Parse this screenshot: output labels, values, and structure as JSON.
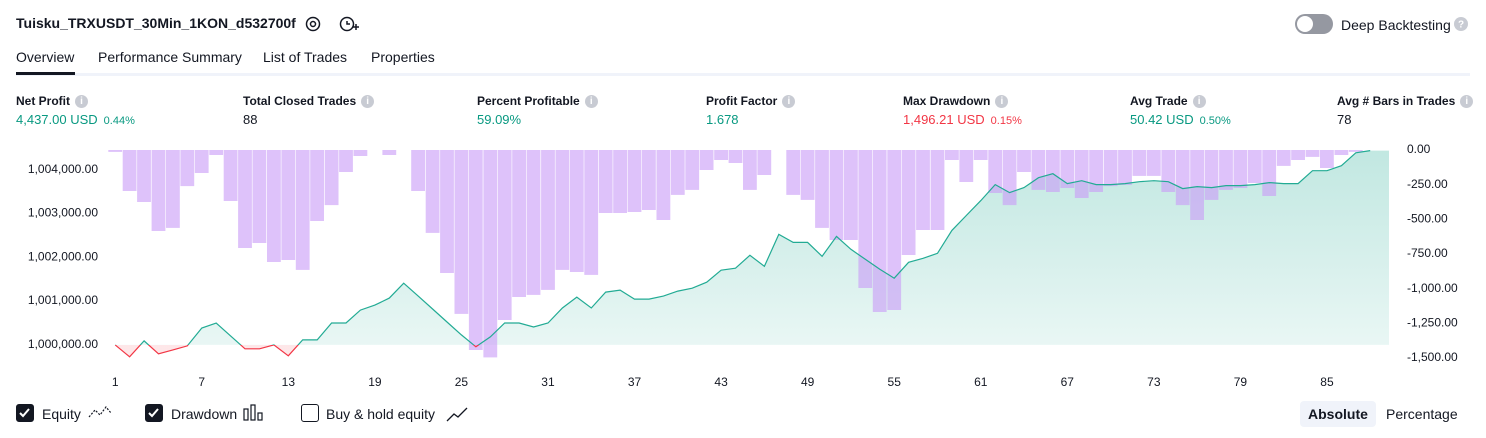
{
  "header": {
    "title": "Tuisku_TRXUSDT_30Min_1KON_d532700f",
    "toggle_label": "Deep Backtesting",
    "toggle_on": false
  },
  "tabs": [
    {
      "label": "Overview",
      "active": true
    },
    {
      "label": "Performance Summary",
      "active": false
    },
    {
      "label": "List of Trades",
      "active": false
    },
    {
      "label": "Properties",
      "active": false
    }
  ],
  "metrics": [
    {
      "label": "Net Profit",
      "value": "4,437.00 USD",
      "percent": "0.44%",
      "color": "#089981"
    },
    {
      "label": "Total Closed Trades",
      "value": "88",
      "color": "#131722"
    },
    {
      "label": "Percent Profitable",
      "value": "59.09%",
      "color": "#089981"
    },
    {
      "label": "Profit Factor",
      "value": "1.678",
      "color": "#089981"
    },
    {
      "label": "Max Drawdown",
      "value": "1,496.21 USD",
      "percent": "0.15%",
      "color": "#f23645"
    },
    {
      "label": "Avg Trade",
      "value": "50.42 USD",
      "percent": "0.50%",
      "color": "#089981"
    },
    {
      "label": "Avg # Bars in Trades",
      "value": "78",
      "color": "#131722"
    }
  ],
  "chart_data": {
    "type": "equity-drawdown",
    "x": [
      1,
      2,
      3,
      4,
      5,
      6,
      7,
      8,
      9,
      10,
      11,
      12,
      13,
      14,
      15,
      16,
      17,
      18,
      19,
      20,
      21,
      22,
      23,
      24,
      25,
      26,
      27,
      28,
      29,
      30,
      31,
      32,
      33,
      34,
      35,
      36,
      37,
      38,
      39,
      40,
      41,
      42,
      43,
      44,
      45,
      46,
      47,
      48,
      49,
      50,
      51,
      52,
      53,
      54,
      55,
      56,
      57,
      58,
      59,
      60,
      61,
      62,
      63,
      64,
      65,
      66,
      67,
      68,
      69,
      70,
      71,
      72,
      73,
      74,
      75,
      76,
      77,
      78,
      79,
      80,
      81,
      82,
      83,
      84,
      85,
      86,
      87,
      88
    ],
    "xlim": [
      0.5,
      89.3
    ],
    "xticks": [
      1,
      7,
      13,
      19,
      25,
      31,
      37,
      43,
      49,
      55,
      61,
      67,
      73,
      79,
      85
    ],
    "ylim": [
      999700,
      1004450
    ],
    "yticks": [
      {
        "value": 1000000,
        "label": "1,000,000.00"
      },
      {
        "value": 1001000,
        "label": "1,001,000.00"
      },
      {
        "value": 1002000,
        "label": "1,002,000.00"
      },
      {
        "value": 1003000,
        "label": "1,003,000.00"
      },
      {
        "value": 1004000,
        "label": "1,004,000.00"
      }
    ],
    "y2lim": [
      -1500,
      0
    ],
    "y2ticks": [
      {
        "value": 0,
        "label": "0.00"
      },
      {
        "value": -250,
        "label": "-250.00"
      },
      {
        "value": -500,
        "label": "-500.00"
      },
      {
        "value": -750,
        "label": "-750.00"
      },
      {
        "value": -1000,
        "label": "-1,000.00"
      },
      {
        "value": -1250,
        "label": "-1,250.00"
      },
      {
        "value": -1500,
        "label": "-1,500.00"
      }
    ],
    "series": [
      {
        "name": "Equity",
        "color": "#22ab94",
        "negative_color": "#f23645",
        "visible": true,
        "values": [
          1000000,
          999727,
          1000091,
          999795,
          999886,
          999977,
          1000386,
          1000500,
          1000205,
          999909,
          999909,
          1000000,
          999750,
          1000114,
          1000114,
          1000500,
          1000500,
          1000795,
          1000909,
          1001068,
          1001409,
          1001114,
          1000818,
          1000523,
          1000227,
          999955,
          1000182,
          1000500,
          1000500,
          1000409,
          1000500,
          1000841,
          1001091,
          1000841,
          1001205,
          1001250,
          1001045,
          1001045,
          1001114,
          1001227,
          1001295,
          1001432,
          1001705,
          1001750,
          1002045,
          1001795,
          1002523,
          1002341,
          1002341,
          1002023,
          1002477,
          1002182,
          1001955,
          1001727,
          1001523,
          1001886,
          1001977,
          1002091,
          1002614,
          1002955,
          1003295,
          1003659,
          1003477,
          1003591,
          1003818,
          1003909,
          1003682,
          1003750,
          1003659,
          1003659,
          1003682,
          1003727,
          1003750,
          1003727,
          1003568,
          1003614,
          1003591,
          1003636,
          1003636,
          1003659,
          1003705,
          1003682,
          1003682,
          1003977,
          1003977,
          1004091,
          1004386,
          1004437
        ]
      },
      {
        "name": "Drawdown",
        "color": "#c99cf7",
        "visible": true,
        "axis": "y2",
        "values": [
          -14,
          -296,
          -375,
          -584,
          -562,
          -260,
          -166,
          -36,
          -368,
          -707,
          -671,
          -808,
          -793,
          -865,
          -512,
          -397,
          -159,
          -43,
          0,
          -36,
          0,
          -296,
          -598,
          -887,
          -1182,
          -1442,
          -1496,
          -1226,
          -1060,
          -1045,
          -1009,
          -865,
          -880,
          -901,
          -454,
          -454,
          -447,
          -433,
          -505,
          -324,
          -288,
          -144,
          -72,
          -94,
          -288,
          -180,
          0,
          -324,
          -360,
          -562,
          -649,
          -649,
          -995,
          -1168,
          -1154,
          -757,
          -577,
          -577,
          -72,
          -231,
          -72,
          -310,
          -397,
          -159,
          -288,
          -303,
          -274,
          -346,
          -303,
          -260,
          -252,
          -187,
          -187,
          -303,
          -397,
          -505,
          -360,
          -288,
          -274,
          -238,
          -332,
          -115,
          -72,
          -50,
          -130,
          -36,
          -14,
          0
        ]
      }
    ]
  },
  "buy_hold": {
    "label": "Buy & hold equity",
    "checked": false
  },
  "view_buttons": [
    {
      "label": "Absolute",
      "active": true
    },
    {
      "label": "Percentage",
      "active": false
    }
  ]
}
